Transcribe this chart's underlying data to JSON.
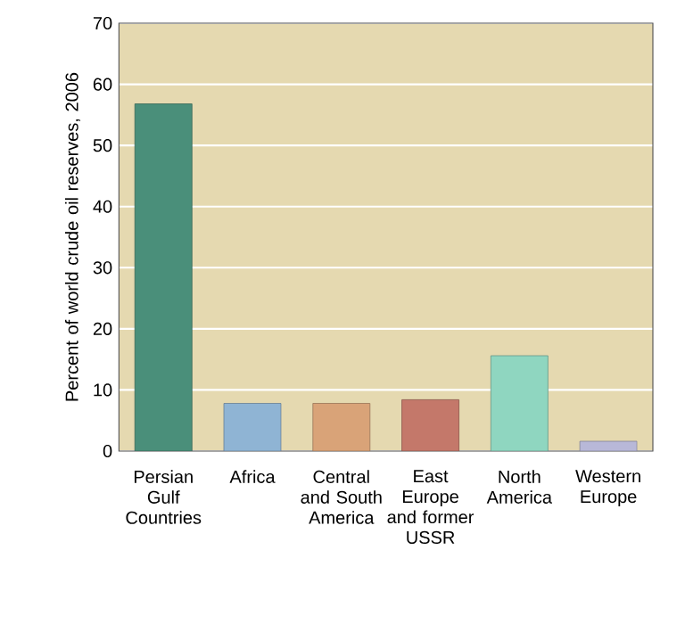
{
  "chart_data": {
    "type": "bar",
    "ylabel": "Percent of world crude oil reserves, 2006",
    "categories": [
      "Persian Gulf Countries",
      "Africa",
      "Central and South America",
      "East Europe and former USSR",
      "North America",
      "Western Europe"
    ],
    "values": [
      56.8,
      7.8,
      7.8,
      8.4,
      15.6,
      1.6
    ],
    "colors": [
      "#4a8f7a",
      "#8fb4d4",
      "#d9a378",
      "#c4786a",
      "#8fd6c0",
      "#b8b8d8"
    ],
    "ylim": [
      0,
      70
    ],
    "yticks": [
      0,
      10,
      20,
      30,
      40,
      50,
      60,
      70
    ],
    "grid": "y"
  }
}
